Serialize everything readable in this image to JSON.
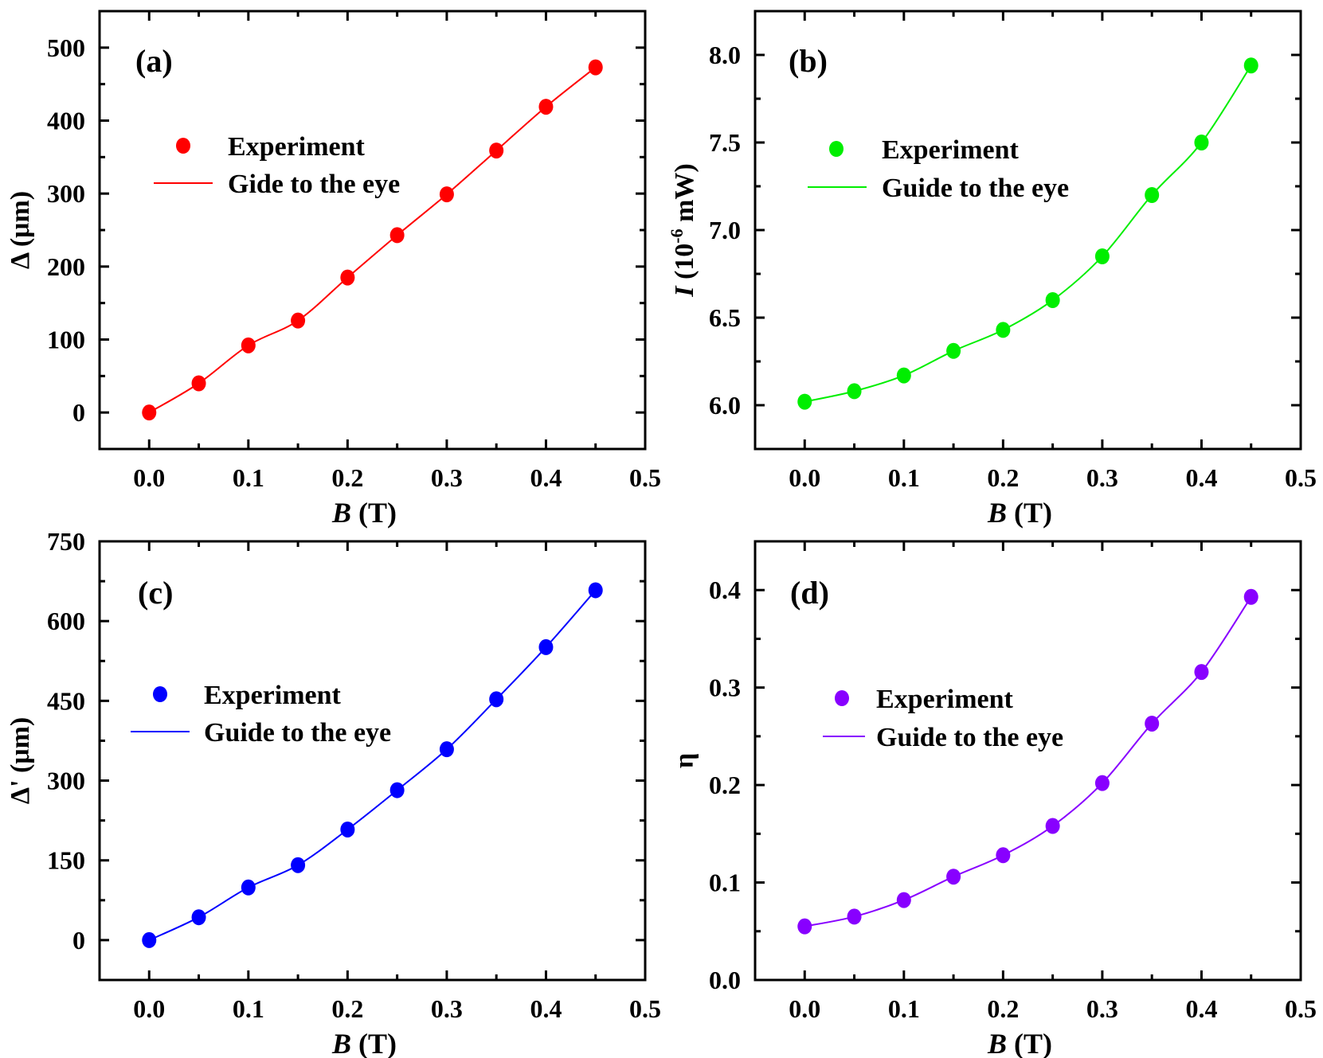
{
  "chart_data": [
    {
      "type": "scatter",
      "panel_label": "(a)",
      "color": "#ff0000",
      "x": [
        0,
        0.05,
        0.1,
        0.15,
        0.2,
        0.25,
        0.3,
        0.35,
        0.4,
        0.45
      ],
      "series": [
        {
          "name": "Experiment",
          "values": [
            0,
            40,
            92,
            126,
            185,
            243,
            299,
            359,
            419,
            473
          ]
        }
      ],
      "line_legend": "Gide to the eye",
      "xlabel": {
        "italic": "B",
        "rest": " (T)"
      },
      "ylabel": {
        "italic": "",
        "pre": "Δ (μm)",
        "sup": "",
        "post": ""
      },
      "xlim": [
        -0.05,
        0.5
      ],
      "ylim": [
        -50,
        550
      ],
      "xticks": [
        {
          "v": 0,
          "t": "0.0"
        },
        {
          "v": 0.1,
          "t": "0.1"
        },
        {
          "v": 0.2,
          "t": "0.2"
        },
        {
          "v": 0.3,
          "t": "0.3"
        },
        {
          "v": 0.4,
          "t": "0.4"
        },
        {
          "v": 0.5,
          "t": "0.5"
        }
      ],
      "yticks": [
        {
          "v": 0,
          "t": "0"
        },
        {
          "v": 100,
          "t": "100"
        },
        {
          "v": 200,
          "t": "200"
        },
        {
          "v": 300,
          "t": "300"
        },
        {
          "v": 400,
          "t": "400"
        },
        {
          "v": 500,
          "t": "500"
        }
      ],
      "x_minor": 0.05,
      "y_minor": 50,
      "grid": false,
      "legend": "upper-left"
    },
    {
      "type": "scatter",
      "panel_label": "(b)",
      "color": "#00ee00",
      "x": [
        0,
        0.05,
        0.1,
        0.15,
        0.2,
        0.25,
        0.3,
        0.35,
        0.4,
        0.45
      ],
      "series": [
        {
          "name": "Experiment",
          "values": [
            6.02,
            6.08,
            6.17,
            6.31,
            6.43,
            6.6,
            6.85,
            7.2,
            7.5,
            7.94
          ]
        }
      ],
      "line_legend": "Guide to the eye",
      "xlabel": {
        "italic": "B",
        "rest": " (T)"
      },
      "ylabel": {
        "italic": "I",
        "pre": " (10",
        "sup": "-6",
        "post": " mW)"
      },
      "xlim": [
        -0.05,
        0.5
      ],
      "ylim": [
        5.75,
        8.25
      ],
      "xticks": [
        {
          "v": 0,
          "t": "0.0"
        },
        {
          "v": 0.1,
          "t": "0.1"
        },
        {
          "v": 0.2,
          "t": "0.2"
        },
        {
          "v": 0.3,
          "t": "0.3"
        },
        {
          "v": 0.4,
          "t": "0.4"
        },
        {
          "v": 0.5,
          "t": "0.5"
        }
      ],
      "yticks": [
        {
          "v": 6,
          "t": "6.0"
        },
        {
          "v": 6.5,
          "t": "6.5"
        },
        {
          "v": 7,
          "t": "7.0"
        },
        {
          "v": 7.5,
          "t": "7.5"
        },
        {
          "v": 8,
          "t": "8.0"
        }
      ],
      "x_minor": 0.05,
      "y_minor": 0.25,
      "grid": false,
      "legend": "upper-left"
    },
    {
      "type": "scatter",
      "panel_label": "(c)",
      "color": "#0000ff",
      "x": [
        0,
        0.05,
        0.1,
        0.15,
        0.2,
        0.25,
        0.3,
        0.35,
        0.4,
        0.45
      ],
      "series": [
        {
          "name": "Experiment",
          "values": [
            0,
            43,
            99,
            141,
            208,
            282,
            359,
            453,
            551,
            658
          ]
        }
      ],
      "line_legend": "Guide to the eye",
      "xlabel": {
        "italic": "B",
        "rest": " (T)"
      },
      "ylabel": {
        "italic": "",
        "pre": "Δ' (μm)",
        "sup": "",
        "post": ""
      },
      "xlim": [
        -0.05,
        0.5
      ],
      "ylim": [
        -75,
        750
      ],
      "xticks": [
        {
          "v": 0,
          "t": "0.0"
        },
        {
          "v": 0.1,
          "t": "0.1"
        },
        {
          "v": 0.2,
          "t": "0.2"
        },
        {
          "v": 0.3,
          "t": "0.3"
        },
        {
          "v": 0.4,
          "t": "0.4"
        },
        {
          "v": 0.5,
          "t": "0.5"
        }
      ],
      "yticks": [
        {
          "v": 0,
          "t": "0"
        },
        {
          "v": 150,
          "t": "150"
        },
        {
          "v": 300,
          "t": "300"
        },
        {
          "v": 450,
          "t": "450"
        },
        {
          "v": 600,
          "t": "600"
        },
        {
          "v": 750,
          "t": "750"
        }
      ],
      "x_minor": 0.05,
      "y_minor": 75,
      "grid": false,
      "legend": "upper-left"
    },
    {
      "type": "scatter",
      "panel_label": "(d)",
      "color": "#8800ff",
      "x": [
        0,
        0.05,
        0.1,
        0.15,
        0.2,
        0.25,
        0.3,
        0.35,
        0.4,
        0.45
      ],
      "series": [
        {
          "name": "Experiment",
          "values": [
            0.055,
            0.065,
            0.082,
            0.106,
            0.128,
            0.158,
            0.202,
            0.263,
            0.316,
            0.393
          ]
        }
      ],
      "line_legend": "Guide to the eye",
      "xlabel": {
        "italic": "B",
        "rest": " (T)"
      },
      "ylabel": {
        "italic": "",
        "pre": "η",
        "sup": "",
        "post": ""
      },
      "xlim": [
        -0.05,
        0.5
      ],
      "ylim": [
        0,
        0.45
      ],
      "xticks": [
        {
          "v": 0,
          "t": "0.0"
        },
        {
          "v": 0.1,
          "t": "0.1"
        },
        {
          "v": 0.2,
          "t": "0.2"
        },
        {
          "v": 0.3,
          "t": "0.3"
        },
        {
          "v": 0.4,
          "t": "0.4"
        },
        {
          "v": 0.5,
          "t": "0.5"
        }
      ],
      "yticks": [
        {
          "v": 0,
          "t": "0.0"
        },
        {
          "v": 0.1,
          "t": "0.1"
        },
        {
          "v": 0.2,
          "t": "0.2"
        },
        {
          "v": 0.3,
          "t": "0.3"
        },
        {
          "v": 0.4,
          "t": "0.4"
        }
      ],
      "x_minor": 0.05,
      "y_minor": 0.05,
      "grid": false,
      "legend": "upper-left"
    }
  ]
}
